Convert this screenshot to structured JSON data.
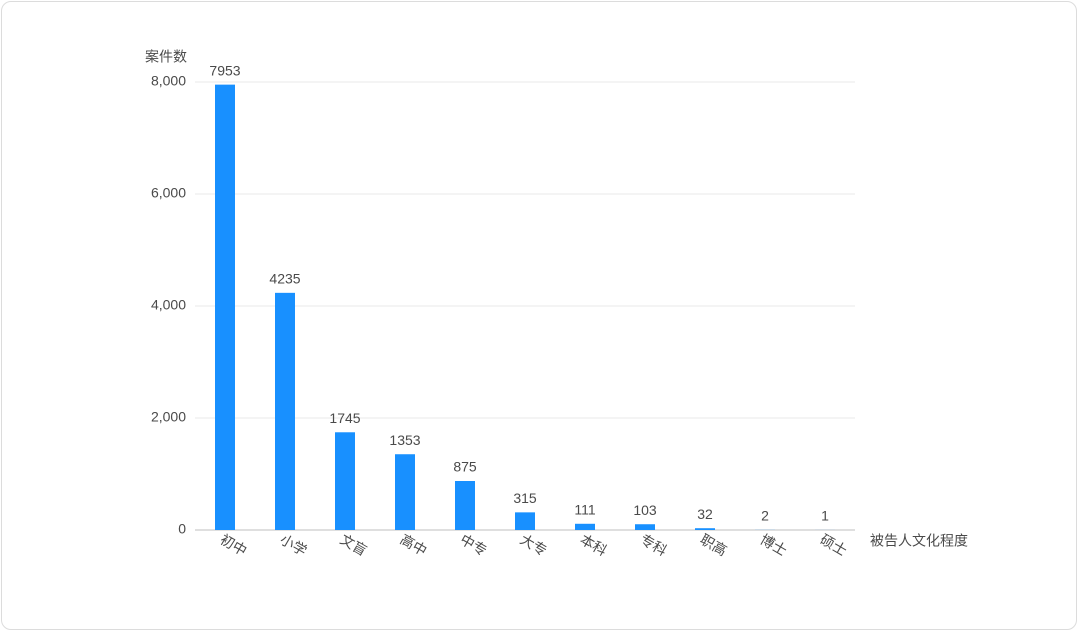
{
  "chart_data": {
    "type": "bar",
    "y_label": "案件数",
    "x_label": "被告人文化程度",
    "categories": [
      "初中",
      "小学",
      "文盲",
      "高中",
      "中专",
      "大专",
      "本科",
      "专科",
      "职高",
      "博士",
      "硕士"
    ],
    "values": [
      7953,
      4235,
      1745,
      1353,
      875,
      315,
      111,
      103,
      32,
      2,
      1
    ],
    "color": "#1890ff",
    "ylim": [
      0,
      8000
    ],
    "yticks": [
      0,
      {
        "value": 2000,
        "label": "2,000"
      },
      {
        "value": 4000,
        "label": "4,000"
      },
      {
        "value": 6000,
        "label": "6,000"
      },
      {
        "value": 8000,
        "label": "8,000"
      }
    ],
    "grid": true,
    "data_labels": true
  }
}
